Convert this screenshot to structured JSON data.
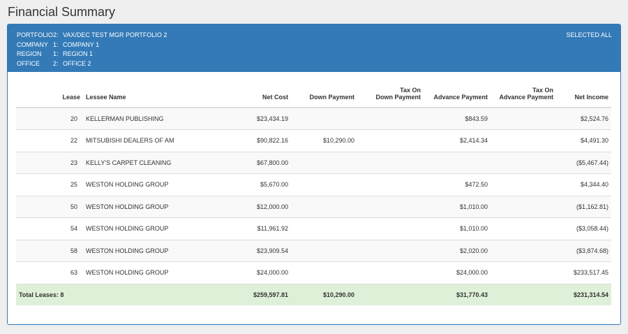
{
  "title": "Financial Summary",
  "header": {
    "rows": [
      {
        "key": "PORTFOLIO",
        "num": "2:",
        "value": "VAX/DEC TEST MGR PORTFOLIO 2"
      },
      {
        "key": "COMPANY",
        "num": "1:",
        "value": "COMPANY 1"
      },
      {
        "key": "REGION",
        "num": "1:",
        "value": "REGION 1"
      },
      {
        "key": "OFFICE",
        "num": "2:",
        "value": "OFFICE 2"
      }
    ],
    "selected_all": "SELECTED ALL"
  },
  "columns": {
    "lease": "Lease",
    "lessee_name": "Lessee Name",
    "net_cost": "Net Cost",
    "down_payment": "Down Payment",
    "tax_on_down_line1": "Tax On",
    "tax_on_down_line2": "Down Payment",
    "advance_payment": "Advance Payment",
    "tax_on_adv_line1": "Tax On",
    "tax_on_adv_line2": "Advance Payment",
    "net_income": "Net Income"
  },
  "rows": [
    {
      "lease": "20",
      "name": "KELLERMAN PUBLISHING",
      "net_cost": "$23,434.19",
      "down": "",
      "tax_down": "",
      "adv": "$843.59",
      "tax_adv": "",
      "income": "$2,524.76"
    },
    {
      "lease": "22",
      "name": "MITSUBISHI DEALERS OF AM",
      "net_cost": "$90,822.16",
      "down": "$10,290.00",
      "tax_down": "",
      "adv": "$2,414.34",
      "tax_adv": "",
      "income": "$4,491.30"
    },
    {
      "lease": "23",
      "name": "KELLY'S CARPET CLEANING",
      "net_cost": "$67,800.00",
      "down": "",
      "tax_down": "",
      "adv": "",
      "tax_adv": "",
      "income": "($5,467.44)"
    },
    {
      "lease": "25",
      "name": "WESTON HOLDING GROUP",
      "net_cost": "$5,670.00",
      "down": "",
      "tax_down": "",
      "adv": "$472.50",
      "tax_adv": "",
      "income": "$4,344.40"
    },
    {
      "lease": "50",
      "name": "WESTON HOLDING GROUP",
      "net_cost": "$12,000.00",
      "down": "",
      "tax_down": "",
      "adv": "$1,010.00",
      "tax_adv": "",
      "income": "($1,162.81)"
    },
    {
      "lease": "54",
      "name": "WESTON HOLDING GROUP",
      "net_cost": "$11,961.92",
      "down": "",
      "tax_down": "",
      "adv": "$1,010.00",
      "tax_adv": "",
      "income": "($3,058.44)"
    },
    {
      "lease": "58",
      "name": "WESTON HOLDING GROUP",
      "net_cost": "$23,909.54",
      "down": "",
      "tax_down": "",
      "adv": "$2,020.00",
      "tax_adv": "",
      "income": "($3,874.68)"
    },
    {
      "lease": "63",
      "name": "WESTON HOLDING GROUP",
      "net_cost": "$24,000.00",
      "down": "",
      "tax_down": "",
      "adv": "$24,000.00",
      "tax_adv": "",
      "income": "$233,517.45"
    }
  ],
  "totals": {
    "label": "Total Leases: 8",
    "net_cost": "$259,597.81",
    "down": "$10,290.00",
    "tax_down": "",
    "adv": "$31,770.43",
    "tax_adv": "",
    "income": "$231,314.54"
  },
  "colors": {
    "header_bg": "#337ab7",
    "totals_bg": "#dff0d8"
  }
}
